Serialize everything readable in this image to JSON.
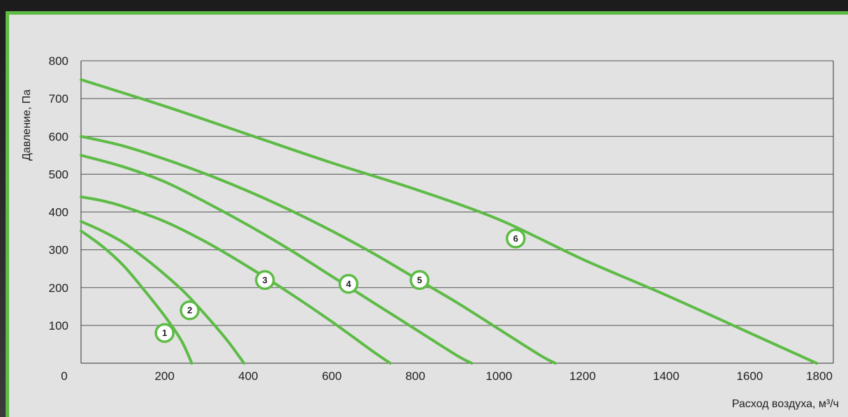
{
  "chart_data": {
    "type": "line",
    "title": "",
    "xlabel": "Расход воздуха, м³/ч",
    "ylabel": "Давление, Па",
    "xlim": [
      0,
      1800
    ],
    "ylim": [
      0,
      800
    ],
    "grid": "horizontal",
    "line_color": "#5dbb46",
    "x_ticks": [
      {
        "value": 0,
        "label": "0"
      },
      {
        "value": 200,
        "label": "200"
      },
      {
        "value": 400,
        "label": "400"
      },
      {
        "value": 600,
        "label": "600"
      },
      {
        "value": 800,
        "label": "800"
      },
      {
        "value": 1000,
        "label": "1000"
      },
      {
        "value": 1200,
        "label": "1200"
      },
      {
        "value": 1400,
        "label": "1400"
      },
      {
        "value": 1600,
        "label": "1600"
      },
      {
        "value": 1800,
        "label": "1800"
      }
    ],
    "y_ticks": [
      {
        "value": 100,
        "label": "100"
      },
      {
        "value": 200,
        "label": "200"
      },
      {
        "value": 300,
        "label": "300"
      },
      {
        "value": 400,
        "label": "400"
      },
      {
        "value": 500,
        "label": "500"
      },
      {
        "value": 600,
        "label": "600"
      },
      {
        "value": 700,
        "label": "700"
      },
      {
        "value": 800,
        "label": "800"
      }
    ],
    "series": [
      {
        "name": "1",
        "marker_at": [
          200,
          80
        ],
        "points": [
          [
            0,
            350
          ],
          [
            50,
            310
          ],
          [
            100,
            260
          ],
          [
            150,
            195
          ],
          [
            200,
            125
          ],
          [
            240,
            60
          ],
          [
            265,
            0
          ]
        ]
      },
      {
        "name": "2",
        "marker_at": [
          260,
          140
        ],
        "points": [
          [
            0,
            375
          ],
          [
            50,
            350
          ],
          [
            100,
            320
          ],
          [
            150,
            280
          ],
          [
            200,
            235
          ],
          [
            250,
            185
          ],
          [
            300,
            125
          ],
          [
            350,
            60
          ],
          [
            390,
            0
          ]
        ]
      },
      {
        "name": "3",
        "marker_at": [
          440,
          220
        ],
        "points": [
          [
            0,
            440
          ],
          [
            50,
            430
          ],
          [
            100,
            415
          ],
          [
            200,
            375
          ],
          [
            300,
            320
          ],
          [
            400,
            255
          ],
          [
            500,
            185
          ],
          [
            600,
            110
          ],
          [
            700,
            30
          ],
          [
            740,
            0
          ]
        ]
      },
      {
        "name": "4",
        "marker_at": [
          640,
          210
        ],
        "points": [
          [
            0,
            550
          ],
          [
            100,
            520
          ],
          [
            200,
            480
          ],
          [
            300,
            425
          ],
          [
            400,
            365
          ],
          [
            500,
            300
          ],
          [
            600,
            230
          ],
          [
            700,
            160
          ],
          [
            800,
            90
          ],
          [
            900,
            20
          ],
          [
            935,
            0
          ]
        ]
      },
      {
        "name": "5",
        "marker_at": [
          810,
          220
        ],
        "points": [
          [
            0,
            600
          ],
          [
            100,
            575
          ],
          [
            200,
            540
          ],
          [
            300,
            500
          ],
          [
            400,
            455
          ],
          [
            500,
            405
          ],
          [
            600,
            350
          ],
          [
            700,
            290
          ],
          [
            800,
            225
          ],
          [
            900,
            160
          ],
          [
            1000,
            90
          ],
          [
            1100,
            20
          ],
          [
            1135,
            0
          ]
        ]
      },
      {
        "name": "6",
        "marker_at": [
          1040,
          330
        ],
        "points": [
          [
            0,
            750
          ],
          [
            200,
            680
          ],
          [
            400,
            605
          ],
          [
            600,
            530
          ],
          [
            800,
            460
          ],
          [
            1000,
            380
          ],
          [
            1200,
            275
          ],
          [
            1400,
            180
          ],
          [
            1600,
            80
          ],
          [
            1760,
            0
          ]
        ]
      }
    ]
  }
}
